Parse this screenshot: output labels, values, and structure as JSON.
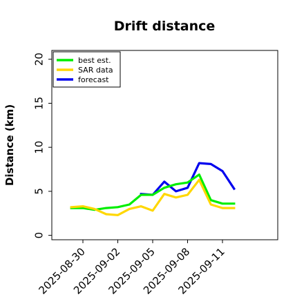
{
  "chart_data": {
    "type": "line",
    "title": "Drift distance",
    "xlabel": "",
    "ylabel": "Distance (km)",
    "ylim": [
      -0.5,
      21
    ],
    "yticks": [
      0,
      5,
      10,
      15,
      20
    ],
    "xticks": [
      "2025-08-30",
      "2025-09-02",
      "2025-09-05",
      "2025-09-08",
      "2025-09-11"
    ],
    "x": [
      "2025-08-29",
      "2025-08-30",
      "2025-08-31",
      "2025-09-01",
      "2025-09-02",
      "2025-09-03",
      "2025-09-04",
      "2025-09-05",
      "2025-09-06",
      "2025-09-07",
      "2025-09-08",
      "2025-09-09",
      "2025-09-10",
      "2025-09-11",
      "2025-09-12"
    ],
    "grid": false,
    "legend_position": "top-left",
    "series": [
      {
        "name": "best est.",
        "color": "#00ee00",
        "values": [
          3.1,
          3.1,
          2.9,
          3.1,
          3.2,
          3.5,
          4.6,
          4.6,
          5.4,
          5.8,
          6.0,
          6.9,
          4.0,
          3.6,
          3.6
        ]
      },
      {
        "name": "SAR data",
        "color": "#ffd700",
        "values": [
          3.2,
          3.3,
          3.0,
          2.4,
          2.3,
          3.0,
          3.3,
          2.8,
          4.7,
          4.3,
          4.6,
          6.3,
          3.5,
          3.1,
          3.1
        ]
      },
      {
        "name": "forecast",
        "color": "#0000ee",
        "values": [
          null,
          null,
          null,
          null,
          null,
          null,
          4.7,
          4.6,
          6.1,
          5.0,
          5.4,
          8.2,
          8.1,
          7.3,
          5.3
        ]
      }
    ]
  }
}
